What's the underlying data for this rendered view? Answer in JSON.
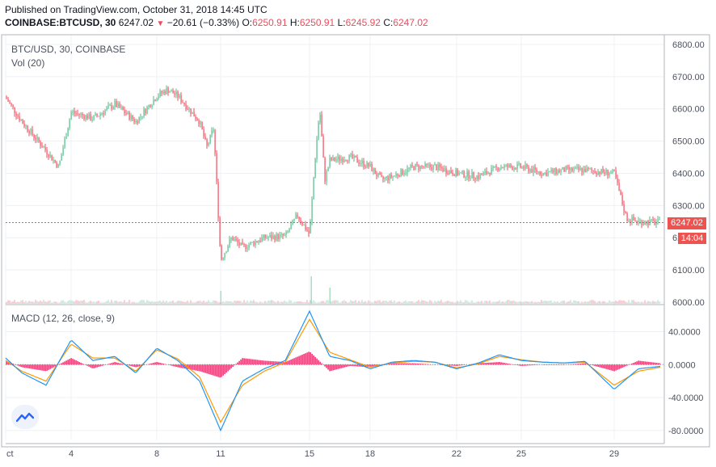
{
  "header": {
    "published": "Published on TradingView.com, October 31, 2018 14:45 UTC",
    "symbol": "COINBASE:BTCUSD, 30",
    "last": "6247.02",
    "change": "−20.61 (−0.33%)",
    "o_label": "O:",
    "o_value": "6250.91",
    "h_label": "H:",
    "h_value": "6250.91",
    "l_label": "L:",
    "l_value": "6245.92",
    "c_label": "C:",
    "c_value": "6247.02"
  },
  "legend": {
    "main": "BTC/USD, 30, COINBASE",
    "vol": "Vol (20)",
    "macd": "MACD (12, 26, close, 9)"
  },
  "badges": {
    "price": "6247.02",
    "timer": "14:04"
  },
  "colors": {
    "up": "#53b987",
    "down": "#eb4d5c",
    "macd": "#2196f3",
    "signal": "#ff9800",
    "hist": "#e91e63",
    "last_line": "#ef5350"
  },
  "icon": "tradingview-logo-icon",
  "chart_data": [
    {
      "type": "candlestick",
      "title": "BTC/USD, 30, COINBASE",
      "x_tick_labels": [
        "ct",
        "4",
        "8",
        "11",
        "15",
        "18",
        "22",
        "25",
        "29"
      ],
      "y_ticks": [
        "6000.00",
        "6100.00",
        "6200.00",
        "6300.00",
        "6400.00",
        "6500.00",
        "6600.00",
        "6700.00",
        "6800.00"
      ],
      "ylim": [
        5995,
        6830
      ],
      "last_price": 6247.02,
      "grid": true,
      "close_path": [
        [
          "ct",
          6635
        ],
        [
          "2",
          6560
        ],
        [
          "3",
          6470
        ],
        [
          "3",
          6420
        ],
        [
          "4",
          6590
        ],
        [
          "5",
          6570
        ],
        [
          "6",
          6615
        ],
        [
          "7",
          6560
        ],
        [
          "8",
          6640
        ],
        [
          "8",
          6660
        ],
        [
          "9",
          6640
        ],
        [
          "10",
          6560
        ],
        [
          "10",
          6480
        ],
        [
          "10",
          6540
        ],
        [
          "11",
          6130
        ],
        [
          "11",
          6200
        ],
        [
          "12",
          6170
        ],
        [
          "13",
          6200
        ],
        [
          "14",
          6205
        ],
        [
          "14",
          6270
        ],
        [
          "15",
          6210
        ],
        [
          "15",
          6430
        ],
        [
          "15",
          6600
        ],
        [
          "15",
          6380
        ],
        [
          "16",
          6440
        ],
        [
          "17",
          6450
        ],
        [
          "18",
          6420
        ],
        [
          "18",
          6380
        ],
        [
          "19",
          6390
        ],
        [
          "20",
          6420
        ],
        [
          "21",
          6420
        ],
        [
          "22",
          6400
        ],
        [
          "23",
          6390
        ],
        [
          "24",
          6420
        ],
        [
          "25",
          6420
        ],
        [
          "26",
          6400
        ],
        [
          "27",
          6410
        ],
        [
          "28",
          6410
        ],
        [
          "29",
          6400
        ],
        [
          "29",
          6260
        ],
        [
          "30",
          6250
        ],
        [
          "31",
          6247
        ]
      ],
      "volume_spikes": [
        "11",
        "15",
        "16"
      ]
    },
    {
      "type": "line",
      "title": "MACD (12, 26, close, 9)",
      "y_ticks": [
        "40.0000",
        "0.0000",
        "-40.0000",
        "-80.0000"
      ],
      "ylim": [
        -92,
        70
      ],
      "series": [
        {
          "name": "MACD",
          "points": [
            [
              "ct",
              8
            ],
            [
              "2",
              -10
            ],
            [
              "3",
              -25
            ],
            [
              "4",
              30
            ],
            [
              "5",
              5
            ],
            [
              "6",
              10
            ],
            [
              "7",
              -10
            ],
            [
              "8",
              20
            ],
            [
              "9",
              5
            ],
            [
              "10",
              -20
            ],
            [
              "11",
              -80
            ],
            [
              "12",
              -20
            ],
            [
              "13",
              -5
            ],
            [
              "14",
              5
            ],
            [
              "15",
              65
            ],
            [
              "16",
              10
            ],
            [
              "17",
              5
            ],
            [
              "18",
              -5
            ],
            [
              "19",
              3
            ],
            [
              "20",
              5
            ],
            [
              "21",
              3
            ],
            [
              "22",
              -5
            ],
            [
              "23",
              2
            ],
            [
              "24",
              12
            ],
            [
              "25",
              5
            ],
            [
              "26",
              3
            ],
            [
              "27",
              2
            ],
            [
              "28",
              4
            ],
            [
              "29",
              -30
            ],
            [
              "30",
              -5
            ],
            [
              "31",
              -2
            ]
          ]
        },
        {
          "name": "Signal",
          "points": [
            [
              "ct",
              5
            ],
            [
              "2",
              -8
            ],
            [
              "3",
              -20
            ],
            [
              "4",
              25
            ],
            [
              "5",
              8
            ],
            [
              "6",
              8
            ],
            [
              "7",
              -8
            ],
            [
              "8",
              18
            ],
            [
              "9",
              7
            ],
            [
              "10",
              -15
            ],
            [
              "11",
              -70
            ],
            [
              "12",
              -25
            ],
            [
              "13",
              -8
            ],
            [
              "14",
              3
            ],
            [
              "15",
              55
            ],
            [
              "16",
              15
            ],
            [
              "17",
              6
            ],
            [
              "18",
              -3
            ],
            [
              "19",
              2
            ],
            [
              "20",
              4
            ],
            [
              "21",
              3
            ],
            [
              "22",
              -4
            ],
            [
              "23",
              1
            ],
            [
              "24",
              10
            ],
            [
              "25",
              6
            ],
            [
              "26",
              3
            ],
            [
              "27",
              2
            ],
            [
              "28",
              3
            ],
            [
              "29",
              -25
            ],
            [
              "30",
              -8
            ],
            [
              "31",
              -3
            ]
          ]
        }
      ]
    }
  ]
}
